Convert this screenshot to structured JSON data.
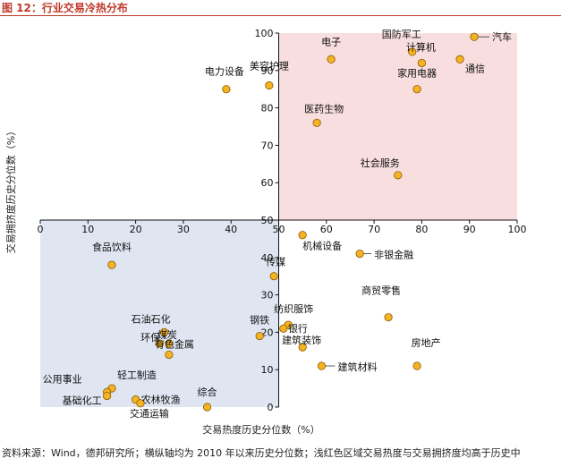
{
  "header": {
    "figure_title": "图 12：行业交易冷热分布"
  },
  "footer": {
    "source_note": "资料来源：Wind，德邦研究所；横纵轴均为 2010 年以来历史分位数；浅红色区域交易热度与交易拥挤度均高于历史中"
  },
  "colors": {
    "title": "#c0392b",
    "point_fill": "#f5b324",
    "point_stroke": "#8a5a00",
    "hot_region": "#f8dede",
    "cold_region": "#dfe6f2"
  },
  "chart_data": {
    "type": "scatter",
    "xlabel": "交易热度历史分位数（%）",
    "ylabel": "交易拥挤度历史分位数（%）",
    "xlim": [
      0,
      100
    ],
    "ylim": [
      0,
      100
    ],
    "x_ticks": [
      0,
      10,
      20,
      30,
      40,
      50,
      60,
      70,
      80,
      90,
      100
    ],
    "y_ticks": [
      0,
      10,
      20,
      30,
      40,
      50,
      60,
      70,
      80,
      90,
      100
    ],
    "x_tick_labels": [
      "0",
      "10",
      "20",
      "30",
      "40",
      "50",
      "60",
      "70",
      "80",
      "90",
      "100"
    ],
    "y_tick_labels": [
      "0",
      "10",
      "20",
      "30",
      "40",
      "50",
      "60",
      "70",
      "80",
      "90",
      "100"
    ],
    "cross_at": {
      "x": 50,
      "y": 50
    },
    "regions": [
      {
        "x_range": [
          50,
          100
        ],
        "y_range": [
          50,
          100
        ],
        "color": "#f8dede"
      },
      {
        "x_range": [
          0,
          50
        ],
        "y_range": [
          0,
          50
        ],
        "color": "#dfe6f2"
      }
    ],
    "points": [
      {
        "label": "汽车",
        "x": 91,
        "y": 99
      },
      {
        "label": "国防军工",
        "x": 78,
        "y": 95
      },
      {
        "label": "计算机",
        "x": 80,
        "y": 92
      },
      {
        "label": "通信",
        "x": 88,
        "y": 93
      },
      {
        "label": "家用电器",
        "x": 79,
        "y": 85
      },
      {
        "label": "电子",
        "x": 61,
        "y": 93
      },
      {
        "label": "美容护理",
        "x": 48,
        "y": 86
      },
      {
        "label": "电力设备",
        "x": 39,
        "y": 85
      },
      {
        "label": "医药生物",
        "x": 58,
        "y": 76
      },
      {
        "label": "社会服务",
        "x": 75,
        "y": 62
      },
      {
        "label": "机械设备",
        "x": 55,
        "y": 46
      },
      {
        "label": "非银金融",
        "x": 67,
        "y": 41
      },
      {
        "label": "食品饮料",
        "x": 15,
        "y": 38
      },
      {
        "label": "传媒",
        "x": 49,
        "y": 35
      },
      {
        "label": "商贸零售",
        "x": 73,
        "y": 24
      },
      {
        "label": "纺织服饰",
        "x": 52,
        "y": 22
      },
      {
        "label": "银行",
        "x": 51,
        "y": 21
      },
      {
        "label": "钢铁",
        "x": 46,
        "y": 19
      },
      {
        "label": "建筑装饰",
        "x": 55,
        "y": 16
      },
      {
        "label": "石油石化",
        "x": 26,
        "y": 20
      },
      {
        "label": "环保",
        "x": 25,
        "y": 17
      },
      {
        "label": "煤炭",
        "x": 27,
        "y": 17
      },
      {
        "label": "有色金属",
        "x": 27,
        "y": 14
      },
      {
        "label": "房地产",
        "x": 79,
        "y": 11
      },
      {
        "label": "建筑材料",
        "x": 59,
        "y": 11
      },
      {
        "label": "轻工制造",
        "x": 15,
        "y": 5
      },
      {
        "label": "公用事业",
        "x": 14,
        "y": 4
      },
      {
        "label": "农林牧渔",
        "x": 20,
        "y": 2
      },
      {
        "label": "基础化工",
        "x": 14,
        "y": 3
      },
      {
        "label": "交通运输",
        "x": 21,
        "y": 1
      },
      {
        "label": "综合",
        "x": 35,
        "y": 0
      }
    ]
  }
}
